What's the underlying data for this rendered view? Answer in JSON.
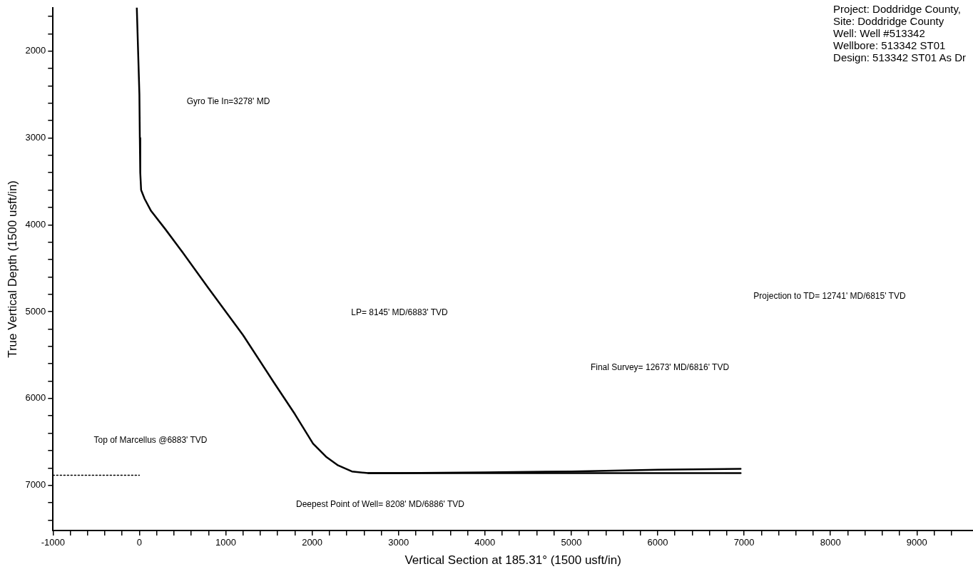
{
  "chart_data": {
    "type": "line",
    "xlabel": "Vertical Section at 185.31° (1500 usft/in)",
    "ylabel": "True Vertical Depth (1500 usft/in)",
    "xlim": [
      -1000,
      9650
    ],
    "ylim": [
      7520,
      1500
    ],
    "xticks": [
      -1000,
      {
        "value": -800,
        "label": null
      },
      {
        "value": -600,
        "label": null
      },
      {
        "value": -400,
        "label": null
      },
      {
        "value": -200,
        "label": null
      },
      0,
      {
        "value": 200,
        "label": null
      },
      {
        "value": 400,
        "label": null
      },
      {
        "value": 600,
        "label": null
      },
      {
        "value": 800,
        "label": null
      },
      1000,
      {
        "value": 1200,
        "label": null
      },
      {
        "value": 1400,
        "label": null
      },
      {
        "value": 1600,
        "label": null
      },
      {
        "value": 1800,
        "label": null
      },
      2000,
      {
        "value": 2200,
        "label": null
      },
      {
        "value": 2400,
        "label": null
      },
      {
        "value": 2600,
        "label": null
      },
      {
        "value": 2800,
        "label": null
      },
      3000,
      {
        "value": 3200,
        "label": null
      },
      {
        "value": 3400,
        "label": null
      },
      {
        "value": 3600,
        "label": null
      },
      {
        "value": 3800,
        "label": null
      },
      4000,
      {
        "value": 4200,
        "label": null
      },
      {
        "value": 4400,
        "label": null
      },
      {
        "value": 4600,
        "label": null
      },
      {
        "value": 4800,
        "label": null
      },
      5000,
      {
        "value": 5200,
        "label": null
      },
      {
        "value": 5400,
        "label": null
      },
      {
        "value": 5600,
        "label": null
      },
      {
        "value": 5800,
        "label": null
      },
      6000,
      {
        "value": 6200,
        "label": null
      },
      {
        "value": 6400,
        "label": null
      },
      {
        "value": 6600,
        "label": null
      },
      {
        "value": 6800,
        "label": null
      },
      7000,
      {
        "value": 7200,
        "label": null
      },
      {
        "value": 7400,
        "label": null
      },
      {
        "value": 7600,
        "label": null
      },
      {
        "value": 7800,
        "label": null
      },
      8000,
      {
        "value": 8200,
        "label": null
      },
      {
        "value": 8400,
        "label": null
      },
      {
        "value": 8600,
        "label": null
      },
      {
        "value": 8800,
        "label": null
      },
      9000,
      {
        "value": 9200,
        "label": null
      },
      {
        "value": 9400,
        "label": null
      }
    ],
    "yticks": [
      {
        "value": 1600,
        "label": null
      },
      {
        "value": 1800,
        "label": null
      },
      2000,
      {
        "value": 2200,
        "label": null
      },
      {
        "value": 2400,
        "label": null
      },
      {
        "value": 2600,
        "label": null
      },
      {
        "value": 2800,
        "label": null
      },
      3000,
      {
        "value": 3200,
        "label": null
      },
      {
        "value": 3400,
        "label": null
      },
      {
        "value": 3600,
        "label": null
      },
      {
        "value": 3800,
        "label": null
      },
      4000,
      {
        "value": 4200,
        "label": null
      },
      {
        "value": 4400,
        "label": null
      },
      {
        "value": 4600,
        "label": null
      },
      {
        "value": 4800,
        "label": null
      },
      5000,
      {
        "value": 5200,
        "label": null
      },
      {
        "value": 5400,
        "label": null
      },
      {
        "value": 5600,
        "label": null
      },
      {
        "value": 5800,
        "label": null
      },
      6000,
      {
        "value": 6200,
        "label": null
      },
      {
        "value": 6400,
        "label": null
      },
      {
        "value": 6600,
        "label": null
      },
      {
        "value": 6800,
        "label": null
      },
      7000,
      {
        "value": 7200,
        "label": null
      },
      {
        "value": 7400,
        "label": null
      }
    ],
    "grid": false,
    "legend": false,
    "marker": "none",
    "series": [
      {
        "color": "#000000",
        "line_style": "solid",
        "x": [
          -30,
          -15,
          0,
          5,
          10,
          20,
          60,
          135,
          300,
          473,
          800,
          1200,
          1560,
          1800,
          2010,
          2160,
          2300,
          2460,
          2650,
          3000,
          4000,
          5000,
          6000,
          6960
        ],
        "values": [
          1500,
          2000,
          2500,
          3000,
          3400,
          3600,
          3700,
          3840,
          4050,
          4280,
          4730,
          5270,
          5820,
          6180,
          6520,
          6670,
          6770,
          6840,
          6860,
          6860,
          6850,
          6840,
          6820,
          6810
        ]
      },
      {
        "color": "#000000",
        "line_style": "solid",
        "x": [
          2650,
          4000,
          5500,
          6960
        ],
        "values": [
          6860,
          6860,
          6860,
          6860
        ]
      },
      {
        "color": "#000000",
        "line_style": "dotted",
        "x": [
          -1000,
          0
        ],
        "values": [
          6883,
          6883
        ]
      }
    ],
    "annotations": [
      "Gyro Tie In=3278' MD",
      "LP= 8145' MD/6883' TVD",
      "Top of Marcellus @6883' TVD",
      "Deepest Point of Well= 8208' MD/6886' TVD",
      "Final Survey= 12673' MD/6816' TVD",
      "Projection to TD= 12741' MD/6815' TVD",
      "Project: Doddridge County,",
      "Site: Doddridge County",
      "Well: Well #513342",
      "Wellbore: 513342 ST01",
      "Design: 513342 ST01 As Dr"
    ]
  }
}
